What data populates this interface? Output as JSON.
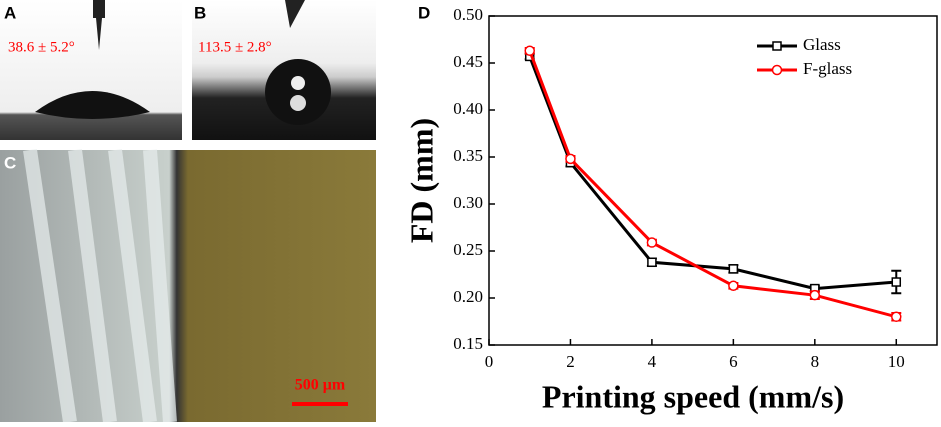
{
  "panels": [
    {
      "label": "A",
      "annotation": "38.6 ± 5.2°"
    },
    {
      "label": "B",
      "annotation": "113.5 ± 2.8°"
    },
    {
      "label": "C",
      "scale_bar": "500 μm"
    }
  ],
  "chart_data": {
    "type": "line",
    "label": "D",
    "x_label": "Printing speed (mm/s)",
    "y_label": "FD (mm)",
    "x": [
      1,
      2,
      4,
      6,
      8,
      10
    ],
    "series": [
      {
        "name": "Glass",
        "color": "#000000",
        "marker": "square",
        "values": [
          0.457,
          0.344,
          0.238,
          0.231,
          0.21,
          0.217
        ],
        "errors": [
          0.003,
          0.004,
          0.004,
          0.004,
          0.003,
          0.012
        ]
      },
      {
        "name": "F-glass",
        "color": "#ff0000",
        "marker": "circle",
        "values": [
          0.463,
          0.348,
          0.259,
          0.213,
          0.203,
          0.18
        ],
        "errors": [
          0.003,
          0.003,
          0.003,
          0.003,
          0.004,
          0.004
        ]
      }
    ],
    "xlim": [
      0,
      11
    ],
    "ylim": [
      0.15,
      0.5
    ],
    "xticks": [
      0,
      2,
      4,
      6,
      8,
      10
    ],
    "yticks": [
      0.15,
      {
        "value": 0.2,
        "label": "0.20"
      },
      0.25,
      {
        "value": 0.3,
        "label": "0.30"
      },
      0.35,
      {
        "value": 0.4,
        "label": "0.40"
      },
      0.45,
      {
        "value": 0.5,
        "label": "0.50"
      }
    ],
    "legend": "top-right"
  }
}
